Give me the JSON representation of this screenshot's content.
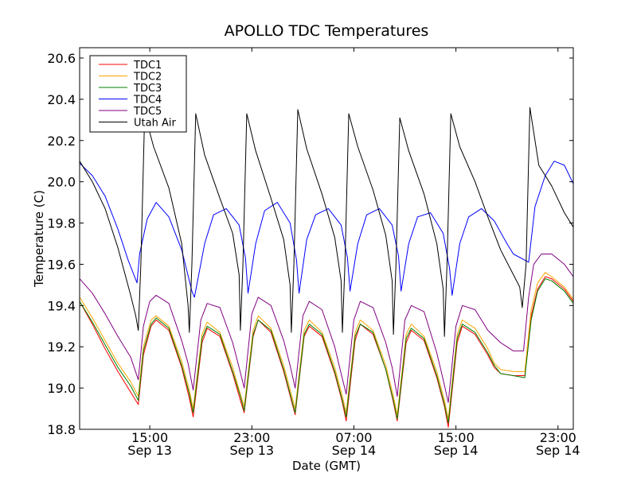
{
  "chart_data": {
    "type": "line",
    "title": "APOLLO TDC Temperatures",
    "xlabel": "Date (GMT)",
    "ylabel": "Temperature (C)",
    "x_unit": "hours since Sep 13 09:30 GMT",
    "xlim": [
      0,
      38.7
    ],
    "ylim": [
      18.8,
      20.65
    ],
    "y_ticks": [
      18.8,
      19.0,
      19.2,
      19.4,
      19.6,
      19.8,
      20.0,
      20.2,
      20.4,
      20.6
    ],
    "y_tick_labels": [
      "18.8",
      "19.0",
      "19.2",
      "19.4",
      "19.6",
      "19.8",
      "20.0",
      "20.2",
      "20.4",
      "20.6"
    ],
    "x_ticks": [
      {
        "x": 5.5,
        "time": "15:00",
        "date": "Sep 13"
      },
      {
        "x": 13.5,
        "time": "23:00",
        "date": "Sep 13"
      },
      {
        "x": 21.5,
        "time": "07:00",
        "date": "Sep 14"
      },
      {
        "x": 29.5,
        "time": "15:00",
        "date": "Sep 14"
      },
      {
        "x": 37.5,
        "time": "23:00",
        "date": "Sep 14"
      }
    ],
    "legend_position": "top-left",
    "series": [
      {
        "name": "TDC1",
        "color": "#ff0000",
        "x": [
          0,
          1,
          2,
          3,
          4,
          4.6,
          5.0,
          5.6,
          6.0,
          7.0,
          8.0,
          8.6,
          8.9,
          9.6,
          10.0,
          11.0,
          12.0,
          12.6,
          12.9,
          13.6,
          14.0,
          15.0,
          16.0,
          16.6,
          16.9,
          17.6,
          18.0,
          19.0,
          20.0,
          20.6,
          20.9,
          21.6,
          22.0,
          23.0,
          24.0,
          24.6,
          24.9,
          25.6,
          26.0,
          27.0,
          28.0,
          28.6,
          28.9,
          29.6,
          30.0,
          31.0,
          32.0,
          32.5,
          33.0,
          34.0,
          34.9,
          35.4,
          35.9,
          36.5,
          37.0,
          38.0,
          38.7
        ],
        "y": [
          19.42,
          19.31,
          19.19,
          19.08,
          18.98,
          18.92,
          19.16,
          19.3,
          19.33,
          19.28,
          19.1,
          18.95,
          18.86,
          19.22,
          19.29,
          19.25,
          19.07,
          18.94,
          18.88,
          19.25,
          19.33,
          19.27,
          19.08,
          18.94,
          18.87,
          19.25,
          19.3,
          19.25,
          19.07,
          18.93,
          18.84,
          19.23,
          19.31,
          19.26,
          19.09,
          18.93,
          18.84,
          19.22,
          19.28,
          19.23,
          19.05,
          18.91,
          18.81,
          19.22,
          19.3,
          19.26,
          19.16,
          19.1,
          19.07,
          19.06,
          19.06,
          19.35,
          19.48,
          19.54,
          19.53,
          19.48,
          19.42
        ]
      },
      {
        "name": "TDC2",
        "color": "#ffa500",
        "x": [
          0,
          1,
          2,
          3,
          4,
          4.6,
          5.0,
          5.6,
          6.0,
          7.0,
          8.0,
          8.6,
          8.9,
          9.6,
          10.0,
          11.0,
          12.0,
          12.6,
          12.9,
          13.6,
          14.0,
          15.0,
          16.0,
          16.6,
          16.9,
          17.6,
          18.0,
          19.0,
          20.0,
          20.6,
          20.9,
          21.6,
          22.0,
          23.0,
          24.0,
          24.6,
          24.9,
          25.6,
          26.0,
          27.0,
          28.0,
          28.6,
          28.9,
          29.6,
          30.0,
          31.0,
          32.0,
          32.5,
          33.0,
          34.0,
          34.9,
          35.4,
          35.9,
          36.5,
          37.0,
          38.0,
          38.7
        ],
        "y": [
          19.44,
          19.34,
          19.23,
          19.12,
          19.03,
          18.96,
          19.2,
          19.33,
          19.35,
          19.3,
          19.13,
          18.99,
          18.9,
          19.26,
          19.32,
          19.27,
          19.1,
          18.97,
          18.91,
          19.28,
          19.35,
          19.29,
          19.11,
          18.97,
          18.9,
          19.28,
          19.33,
          19.27,
          19.1,
          18.96,
          18.88,
          19.27,
          19.33,
          19.28,
          19.11,
          18.96,
          18.87,
          19.26,
          19.31,
          19.25,
          19.08,
          18.94,
          18.85,
          19.26,
          19.33,
          19.29,
          19.19,
          19.12,
          19.09,
          19.08,
          19.08,
          19.38,
          19.51,
          19.56,
          19.54,
          19.49,
          19.43
        ]
      },
      {
        "name": "TDC3",
        "color": "#008000",
        "x": [
          0,
          1,
          2,
          3,
          4,
          4.6,
          5.0,
          5.6,
          6.0,
          7.0,
          8.0,
          8.6,
          8.9,
          9.6,
          10.0,
          11.0,
          12.0,
          12.6,
          12.9,
          13.6,
          14.0,
          15.0,
          16.0,
          16.6,
          16.9,
          17.6,
          18.0,
          19.0,
          20.0,
          20.6,
          20.9,
          21.6,
          22.0,
          23.0,
          24.0,
          24.6,
          24.9,
          25.6,
          26.0,
          27.0,
          28.0,
          28.6,
          28.9,
          29.6,
          30.0,
          31.0,
          32.0,
          32.5,
          33.0,
          34.0,
          34.9,
          35.4,
          35.9,
          36.5,
          37.0,
          38.0,
          38.7
        ],
        "y": [
          19.42,
          19.32,
          19.21,
          19.1,
          19.01,
          18.94,
          19.18,
          19.31,
          19.34,
          19.29,
          19.11,
          18.97,
          18.88,
          19.24,
          19.3,
          19.26,
          19.08,
          18.96,
          18.89,
          19.26,
          19.33,
          19.28,
          19.09,
          18.95,
          18.88,
          19.26,
          19.31,
          19.26,
          19.08,
          18.94,
          18.86,
          19.25,
          19.31,
          19.27,
          19.09,
          18.94,
          18.85,
          19.24,
          19.29,
          19.24,
          19.06,
          18.92,
          18.83,
          19.24,
          19.31,
          19.27,
          19.17,
          19.11,
          19.07,
          19.06,
          19.05,
          19.33,
          19.47,
          19.53,
          19.52,
          19.47,
          19.41
        ]
      },
      {
        "name": "TDC4",
        "color": "#0000ff",
        "x": [
          0,
          1,
          2,
          3,
          3.8,
          4.5,
          4.7,
          5.3,
          6.0,
          7.0,
          8.0,
          8.8,
          9.0,
          9.8,
          10.5,
          11.5,
          12.5,
          13.0,
          13.2,
          13.8,
          14.5,
          15.5,
          16.5,
          17.0,
          17.2,
          17.8,
          18.5,
          19.5,
          20.5,
          21.0,
          21.2,
          21.8,
          22.5,
          23.5,
          24.5,
          25.0,
          25.2,
          25.8,
          26.5,
          27.5,
          28.5,
          29.0,
          29.2,
          29.8,
          30.5,
          31.5,
          32.5,
          33.5,
          34.0,
          34.9,
          35.2,
          35.7,
          36.5,
          37.2,
          38.0,
          38.7
        ],
        "y": [
          20.09,
          20.03,
          19.93,
          19.77,
          19.62,
          19.51,
          19.65,
          19.82,
          19.9,
          19.83,
          19.67,
          19.47,
          19.44,
          19.7,
          19.84,
          19.87,
          19.79,
          19.63,
          19.46,
          19.7,
          19.86,
          19.9,
          19.8,
          19.62,
          19.46,
          19.72,
          19.84,
          19.87,
          19.79,
          19.63,
          19.47,
          19.7,
          19.84,
          19.87,
          19.79,
          19.64,
          19.47,
          19.7,
          19.83,
          19.85,
          19.75,
          19.58,
          19.45,
          19.7,
          19.83,
          19.87,
          19.81,
          19.7,
          19.65,
          19.62,
          19.61,
          19.88,
          20.03,
          20.1,
          20.08,
          19.99
        ]
      },
      {
        "name": "TDC5",
        "color": "#800080",
        "x": [
          0,
          1,
          2,
          3,
          4.0,
          4.6,
          5.0,
          5.5,
          6.0,
          7.0,
          8.0,
          8.5,
          8.9,
          9.5,
          10.0,
          11.0,
          12.0,
          12.5,
          12.9,
          13.5,
          14.0,
          15.0,
          16.0,
          16.5,
          16.9,
          17.5,
          18.0,
          19.0,
          20.0,
          20.5,
          20.9,
          21.5,
          22.0,
          23.0,
          24.0,
          24.5,
          24.9,
          25.5,
          26.0,
          27.0,
          28.0,
          28.5,
          28.9,
          29.5,
          30.0,
          31.0,
          32.0,
          33.0,
          34.0,
          34.8,
          35.2,
          35.6,
          36.2,
          37.0,
          38.0,
          38.7
        ],
        "y": [
          19.53,
          19.46,
          19.36,
          19.25,
          19.15,
          19.04,
          19.3,
          19.42,
          19.45,
          19.41,
          19.23,
          19.12,
          18.99,
          19.33,
          19.41,
          19.39,
          19.22,
          19.1,
          19.0,
          19.36,
          19.44,
          19.4,
          19.23,
          19.11,
          19.0,
          19.35,
          19.42,
          19.38,
          19.2,
          19.07,
          18.97,
          19.33,
          19.42,
          19.39,
          19.22,
          19.1,
          18.96,
          19.33,
          19.4,
          19.37,
          19.17,
          19.04,
          18.93,
          19.3,
          19.4,
          19.38,
          19.28,
          19.22,
          19.18,
          19.18,
          19.44,
          19.6,
          19.65,
          19.65,
          19.6,
          19.54
        ]
      },
      {
        "name": "Utah Air",
        "color": "#000000",
        "x": [
          0,
          1,
          2,
          3,
          4.0,
          4.4,
          4.6,
          4.8,
          5.1,
          5.8,
          7.0,
          8.0,
          8.5,
          8.6,
          8.8,
          9.1,
          9.8,
          11.0,
          12.0,
          12.5,
          12.6,
          12.8,
          13.1,
          13.8,
          15.0,
          16.0,
          16.5,
          16.6,
          16.8,
          17.1,
          17.8,
          19.0,
          20.0,
          20.5,
          20.6,
          20.8,
          21.1,
          21.8,
          23.0,
          24.0,
          24.5,
          24.6,
          24.8,
          25.1,
          25.8,
          27.0,
          28.0,
          28.5,
          28.6,
          28.8,
          29.1,
          29.8,
          31.0,
          32.0,
          33.0,
          34.0,
          34.5,
          34.7,
          35.0,
          35.3,
          36.0,
          37.0,
          38.0,
          38.7
        ],
        "y": [
          20.1,
          20.0,
          19.87,
          19.68,
          19.45,
          19.35,
          19.28,
          19.6,
          20.33,
          20.17,
          19.97,
          19.7,
          19.4,
          19.27,
          19.6,
          20.33,
          20.13,
          19.92,
          19.75,
          19.55,
          19.28,
          19.6,
          20.33,
          20.15,
          19.92,
          19.72,
          19.5,
          19.27,
          19.6,
          20.35,
          20.16,
          19.94,
          19.73,
          19.52,
          19.27,
          19.6,
          20.33,
          20.17,
          19.96,
          19.74,
          19.52,
          19.26,
          19.6,
          20.31,
          20.15,
          19.94,
          19.7,
          19.48,
          19.25,
          19.6,
          20.33,
          20.17,
          20.0,
          19.83,
          19.67,
          19.55,
          19.49,
          19.39,
          19.6,
          20.36,
          20.08,
          19.98,
          19.85,
          19.78
        ]
      }
    ]
  }
}
